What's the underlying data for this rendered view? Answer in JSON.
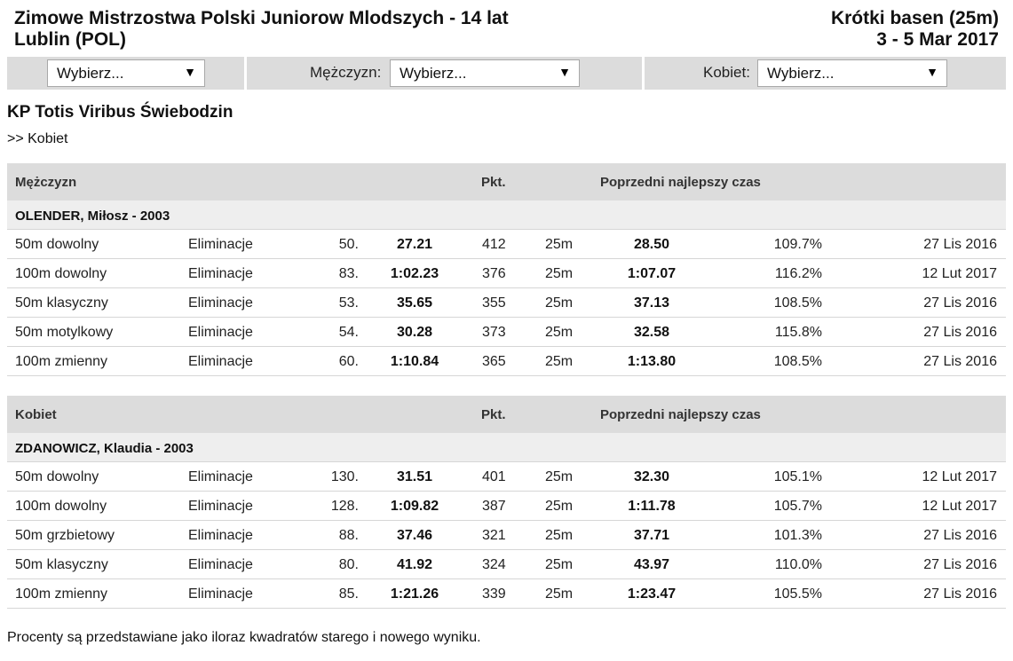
{
  "header": {
    "title_line1": "Zimowe Mistrzostwa Polski Juniorow Mlodszych - 14 lat",
    "title_line2": "Lublin (POL)",
    "course": "Krótki basen (25m)",
    "dates": "3 - 5 Mar 2017"
  },
  "filters": {
    "first": {
      "value": "Wybierz..."
    },
    "men": {
      "label": "Mężczyzn:",
      "value": "Wybierz..."
    },
    "women": {
      "label": "Kobiet:",
      "value": "Wybierz..."
    },
    "arrow_icon": "▼"
  },
  "club": "KP Totis Viribus Świebodzin",
  "breadcrumb": ">> Kobiet",
  "sections": [
    {
      "title": "Mężczyzn",
      "pts_header": "Pkt.",
      "prev_header": "Poprzedni najlepszy czas",
      "athlete": "OLENDER, Miłosz - 2003",
      "rows": [
        {
          "event": "50m dowolny",
          "round": "Eliminacje",
          "place": "50.",
          "time": "27.21",
          "points": "412",
          "course": "25m",
          "prev_time": "28.50",
          "pct": "109.7%",
          "date": "27 Lis 2016"
        },
        {
          "event": "100m dowolny",
          "round": "Eliminacje",
          "place": "83.",
          "time": "1:02.23",
          "points": "376",
          "course": "25m",
          "prev_time": "1:07.07",
          "pct": "116.2%",
          "date": "12 Lut 2017"
        },
        {
          "event": "50m klasyczny",
          "round": "Eliminacje",
          "place": "53.",
          "time": "35.65",
          "points": "355",
          "course": "25m",
          "prev_time": "37.13",
          "pct": "108.5%",
          "date": "27 Lis 2016"
        },
        {
          "event": "50m motylkowy",
          "round": "Eliminacje",
          "place": "54.",
          "time": "30.28",
          "points": "373",
          "course": "25m",
          "prev_time": "32.58",
          "pct": "115.8%",
          "date": "27 Lis 2016"
        },
        {
          "event": "100m zmienny",
          "round": "Eliminacje",
          "place": "60.",
          "time": "1:10.84",
          "points": "365",
          "course": "25m",
          "prev_time": "1:13.80",
          "pct": "108.5%",
          "date": "27 Lis 2016"
        }
      ]
    },
    {
      "title": "Kobiet",
      "pts_header": "Pkt.",
      "prev_header": "Poprzedni najlepszy czas",
      "athlete": "ZDANOWICZ, Klaudia - 2003",
      "rows": [
        {
          "event": "50m dowolny",
          "round": "Eliminacje",
          "place": "130.",
          "time": "31.51",
          "points": "401",
          "course": "25m",
          "prev_time": "32.30",
          "pct": "105.1%",
          "date": "12 Lut 2017"
        },
        {
          "event": "100m dowolny",
          "round": "Eliminacje",
          "place": "128.",
          "time": "1:09.82",
          "points": "387",
          "course": "25m",
          "prev_time": "1:11.78",
          "pct": "105.7%",
          "date": "12 Lut 2017"
        },
        {
          "event": "50m grzbietowy",
          "round": "Eliminacje",
          "place": "88.",
          "time": "37.46",
          "points": "321",
          "course": "25m",
          "prev_time": "37.71",
          "pct": "101.3%",
          "date": "27 Lis 2016"
        },
        {
          "event": "50m klasyczny",
          "round": "Eliminacje",
          "place": "80.",
          "time": "41.92",
          "points": "324",
          "course": "25m",
          "prev_time": "43.97",
          "pct": "110.0%",
          "date": "27 Lis 2016"
        },
        {
          "event": "100m zmienny",
          "round": "Eliminacje",
          "place": "85.",
          "time": "1:21.26",
          "points": "339",
          "course": "25m",
          "prev_time": "1:23.47",
          "pct": "105.5%",
          "date": "27 Lis 2016"
        }
      ]
    }
  ],
  "footnote": "Procenty są przedstawiane jako iloraz kwadratów starego i nowego wyniku."
}
